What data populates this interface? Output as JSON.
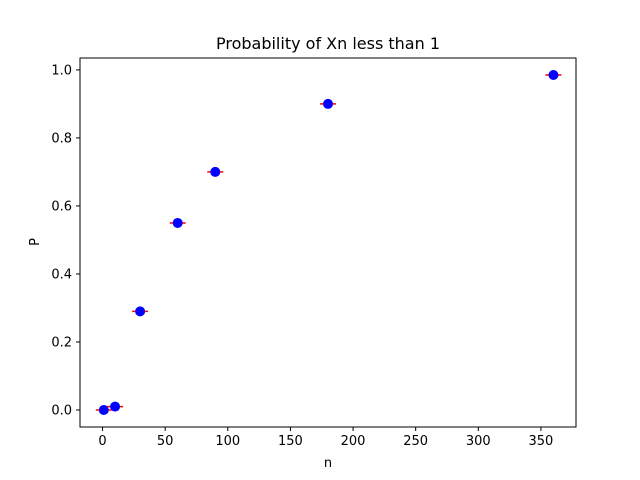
{
  "chart_data": {
    "type": "scatter",
    "title": "Probability of Xn less than 1",
    "xlabel": "n",
    "ylabel": "P",
    "xlim": [
      -18,
      378
    ],
    "ylim": [
      -0.05,
      1.035
    ],
    "xticks": [
      0,
      50,
      100,
      150,
      200,
      250,
      300,
      350
    ],
    "yticks": [
      0.0,
      0.2,
      0.4,
      0.6,
      0.8,
      1.0
    ],
    "xtick_labels": [
      "0",
      "50",
      "100",
      "150",
      "200",
      "250",
      "300",
      "350"
    ],
    "ytick_labels": [
      "0.0",
      "0.2",
      "0.4",
      "0.6",
      "0.8",
      "1.0"
    ],
    "grid": false,
    "series": [
      {
        "x": [
          1,
          10,
          30,
          60,
          90,
          180,
          360
        ],
        "y": [
          0.0,
          0.01,
          0.29,
          0.55,
          0.7,
          0.9,
          0.985
        ],
        "marker_color": "#0000ff",
        "errorbar_color": "#ff0000"
      }
    ]
  }
}
